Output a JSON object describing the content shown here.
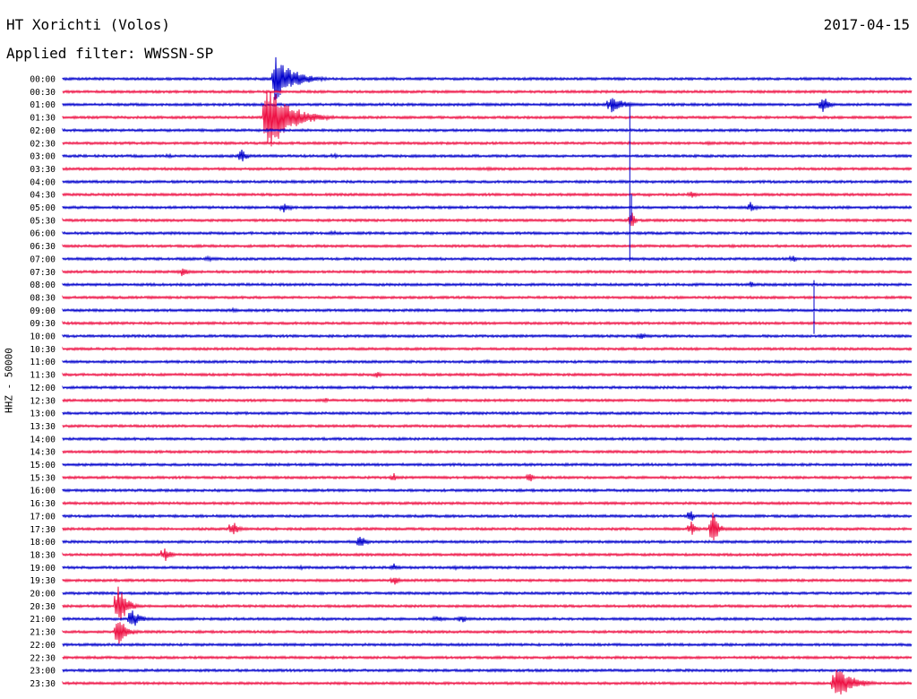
{
  "header": {
    "station": "HT Xorichti (Volos)",
    "date": "2017-04-15",
    "filter_label": "Applied filter:",
    "filter_value": "WWSSN-SP"
  },
  "colors": {
    "even_line": "#0000cc",
    "odd_line": "#ee1144",
    "text": "#000000"
  },
  "chart_data": {
    "type": "line",
    "subtype": "helicorder",
    "title": "HT Xorichti (Volos)",
    "ylabel": "HHZ - 50000",
    "time_labels": [
      "00:00",
      "00:30",
      "01:00",
      "01:30",
      "02:00",
      "02:30",
      "03:00",
      "03:30",
      "04:00",
      "04:30",
      "05:00",
      "05:30",
      "06:00",
      "06:30",
      "07:00",
      "07:30",
      "08:00",
      "08:30",
      "09:00",
      "09:30",
      "10:00",
      "10:30",
      "11:00",
      "11:30",
      "12:00",
      "12:30",
      "13:00",
      "13:30",
      "14:00",
      "14:30",
      "15:00",
      "15:30",
      "16:00",
      "16:30",
      "17:00",
      "17:30",
      "18:00",
      "18:30",
      "19:00",
      "19:30",
      "20:00",
      "20:30",
      "21:00",
      "21:30",
      "22:00",
      "22:30",
      "23:00",
      "23:30"
    ],
    "line_minutes": 30,
    "line_colors": [
      "blue",
      "red"
    ],
    "events": [
      {
        "line": 0,
        "pos": 0.25,
        "amp": 26,
        "dur": 0.07
      },
      {
        "line": 2,
        "pos": 0.645,
        "amp": 10,
        "dur": 0.05
      },
      {
        "line": 2,
        "pos": 0.895,
        "amp": 12,
        "dur": 0.02
      },
      {
        "line": 3,
        "pos": 0.24,
        "amp": 42,
        "dur": 0.08
      },
      {
        "line": 5,
        "pos": 0.76,
        "amp": 3,
        "dur": 0.02
      },
      {
        "line": 6,
        "pos": 0.21,
        "amp": 10,
        "dur": 0.02
      },
      {
        "line": 6,
        "pos": 0.125,
        "amp": 4,
        "dur": 0.01
      },
      {
        "line": 6,
        "pos": 0.32,
        "amp": 4,
        "dur": 0.01
      },
      {
        "line": 7,
        "pos": 0.38,
        "amp": 2,
        "dur": 0.03
      },
      {
        "line": 7,
        "pos": 0.5,
        "amp": 2,
        "dur": 0.06
      },
      {
        "line": 9,
        "pos": 0.69,
        "amp": 3,
        "dur": 0.01
      },
      {
        "line": 9,
        "pos": 0.74,
        "amp": 5,
        "dur": 0.02
      },
      {
        "line": 10,
        "pos": 0.26,
        "amp": 6,
        "dur": 0.03
      },
      {
        "line": 10,
        "pos": 0.81,
        "amp": 7,
        "dur": 0.02
      },
      {
        "line": 11,
        "pos": 0.67,
        "amp": 14,
        "dur": 0.01
      },
      {
        "line": 12,
        "pos": 0.32,
        "amp": 4,
        "dur": 0.01
      },
      {
        "line": 13,
        "pos": 0.79,
        "amp": 3,
        "dur": 0.01
      },
      {
        "line": 14,
        "pos": 0.17,
        "amp": 4,
        "dur": 0.02
      },
      {
        "line": 14,
        "pos": 0.86,
        "amp": 5,
        "dur": 0.02
      },
      {
        "line": 15,
        "pos": 0.14,
        "amp": 5,
        "dur": 0.03
      },
      {
        "line": 16,
        "pos": 0.81,
        "amp": 4,
        "dur": 0.02
      },
      {
        "line": 18,
        "pos": 0.2,
        "amp": 3,
        "dur": 0.02
      },
      {
        "line": 20,
        "pos": 0.68,
        "amp": 4,
        "dur": 0.03
      },
      {
        "line": 22,
        "pos": 0.5,
        "amp": 2,
        "dur": 0.03
      },
      {
        "line": 23,
        "pos": 0.37,
        "amp": 4,
        "dur": 0.02
      },
      {
        "line": 25,
        "pos": 0.31,
        "amp": 4,
        "dur": 0.01
      },
      {
        "line": 25,
        "pos": 0.43,
        "amp": 3,
        "dur": 0.02
      },
      {
        "line": 28,
        "pos": 0.4,
        "amp": 3,
        "dur": 0.02
      },
      {
        "line": 31,
        "pos": 0.39,
        "amp": 6,
        "dur": 0.01
      },
      {
        "line": 31,
        "pos": 0.55,
        "amp": 8,
        "dur": 0.01
      },
      {
        "line": 34,
        "pos": 0.74,
        "amp": 9,
        "dur": 0.01
      },
      {
        "line": 34,
        "pos": 0.82,
        "amp": 3,
        "dur": 0.01
      },
      {
        "line": 35,
        "pos": 0.2,
        "amp": 10,
        "dur": 0.02
      },
      {
        "line": 35,
        "pos": 0.74,
        "amp": 9,
        "dur": 0.02
      },
      {
        "line": 35,
        "pos": 0.765,
        "amp": 22,
        "dur": 0.02
      },
      {
        "line": 36,
        "pos": 0.35,
        "amp": 10,
        "dur": 0.02
      },
      {
        "line": 37,
        "pos": 0.12,
        "amp": 10,
        "dur": 0.02
      },
      {
        "line": 38,
        "pos": 0.28,
        "amp": 3,
        "dur": 0.02
      },
      {
        "line": 38,
        "pos": 0.46,
        "amp": 3,
        "dur": 0.03
      },
      {
        "line": 38,
        "pos": 0.39,
        "amp": 5,
        "dur": 0.01
      },
      {
        "line": 39,
        "pos": 0.39,
        "amp": 6,
        "dur": 0.02
      },
      {
        "line": 41,
        "pos": 0.065,
        "amp": 26,
        "dur": 0.03
      },
      {
        "line": 42,
        "pos": 0.08,
        "amp": 14,
        "dur": 0.03
      },
      {
        "line": 42,
        "pos": 0.44,
        "amp": 5,
        "dur": 0.03
      },
      {
        "line": 42,
        "pos": 0.47,
        "amp": 6,
        "dur": 0.02
      },
      {
        "line": 43,
        "pos": 0.065,
        "amp": 20,
        "dur": 0.03
      },
      {
        "line": 47,
        "pos": 0.91,
        "amp": 20,
        "dur": 0.06
      }
    ],
    "spikes": [
      {
        "line": 2,
        "pos": 0.668,
        "up": 0,
        "down": 175
      },
      {
        "line": 10,
        "pos": 0.67,
        "up": 15,
        "down": 15
      },
      {
        "line": 16,
        "pos": 0.885,
        "up": 5,
        "down": 55
      }
    ]
  }
}
